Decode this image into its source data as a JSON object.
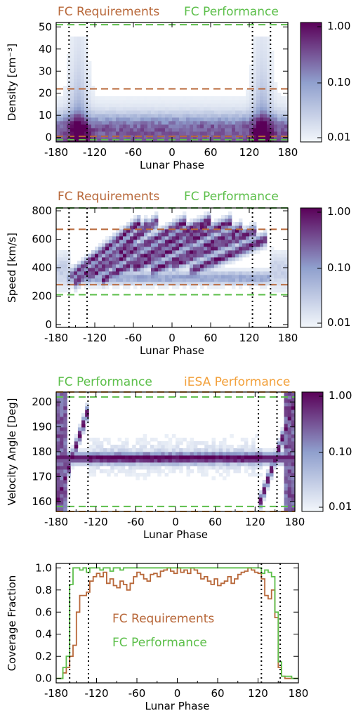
{
  "colors": {
    "fc_requirements": "#b8683a",
    "fc_performance": "#5cbf4a",
    "iesa_performance": "#f2a03a",
    "heat_low": "#f3f7fb",
    "heat_mid": "#8f9fcd",
    "heat_high": "#5a0058",
    "axis": "#000000"
  },
  "chart_data": [
    {
      "type": "heatmap",
      "ylabel": "Density [cm⁻³]",
      "xlabel": "Lunar Phase",
      "xlim": [
        -180,
        180
      ],
      "ylim": [
        -2,
        52
      ],
      "xticks": [
        -180,
        -120,
        -60,
        0,
        60,
        120,
        180
      ],
      "yticks": [
        0,
        10,
        20,
        30,
        40,
        50
      ],
      "legend": [
        {
          "label": "FC Requirements",
          "color": "#b8683a"
        },
        {
          "label": "FC Performance",
          "color": "#5cbf4a"
        }
      ],
      "hlines": [
        {
          "y": 22,
          "series": "FC Requirements"
        },
        {
          "y": 0.5,
          "series": "FC Requirements"
        },
        {
          "y": 51,
          "series": "FC Performance"
        },
        {
          "y": -1,
          "series": "FC Performance"
        }
      ],
      "vlines": [
        -160,
        -132,
        125,
        153
      ],
      "colorbar": {
        "scale": "log",
        "ticks": [
          "1.00",
          "0.10",
          "0.01"
        ]
      },
      "density_ridge": [
        {
          "x": -170,
          "y": 3
        },
        {
          "x": -150,
          "y": 8
        },
        {
          "x": -120,
          "y": 6
        },
        {
          "x": -60,
          "y": 4
        },
        {
          "x": 0,
          "y": 3
        },
        {
          "x": 60,
          "y": 4
        },
        {
          "x": 120,
          "y": 7
        },
        {
          "x": 150,
          "y": 8
        },
        {
          "x": 170,
          "y": 3
        }
      ]
    },
    {
      "type": "heatmap",
      "ylabel": "Speed [km/s]",
      "xlabel": "Lunar Phase",
      "xlim": [
        -180,
        180
      ],
      "ylim": [
        -20,
        820
      ],
      "xticks": [
        -180,
        -120,
        -60,
        0,
        60,
        120,
        180
      ],
      "yticks": [
        0,
        200,
        400,
        600,
        800
      ],
      "legend": [
        {
          "label": "FC Requirements",
          "color": "#b8683a"
        },
        {
          "label": "FC Performance",
          "color": "#5cbf4a"
        }
      ],
      "hlines": [
        {
          "y": 670,
          "series": "FC Requirements"
        },
        {
          "y": 280,
          "series": "FC Requirements"
        },
        {
          "y": 820,
          "series": "FC Performance"
        },
        {
          "y": 210,
          "series": "FC Performance"
        }
      ],
      "vlines": [
        -160,
        -132,
        125,
        153
      ],
      "colorbar": {
        "scale": "log",
        "ticks": [
          "1.00",
          "0.10",
          "0.01"
        ]
      },
      "streams": [
        {
          "x0": -160,
          "y0": 330,
          "x1": -50,
          "y1": 720
        },
        {
          "x0": -150,
          "y0": 300,
          "x1": -20,
          "y1": 740
        },
        {
          "x0": -130,
          "y0": 340,
          "x1": 20,
          "y1": 720
        },
        {
          "x0": -110,
          "y0": 310,
          "x1": 40,
          "y1": 700
        },
        {
          "x0": -90,
          "y0": 360,
          "x1": 60,
          "y1": 740
        },
        {
          "x0": -60,
          "y0": 400,
          "x1": 90,
          "y1": 720
        },
        {
          "x0": -30,
          "y0": 380,
          "x1": 110,
          "y1": 680
        },
        {
          "x0": 0,
          "y0": 420,
          "x1": 130,
          "y1": 660
        },
        {
          "x0": 30,
          "y0": 380,
          "x1": 145,
          "y1": 600
        },
        {
          "x0": -80,
          "y0": 500,
          "x1": -40,
          "y1": 700
        },
        {
          "x0": 20,
          "y0": 600,
          "x1": 60,
          "y1": 720
        }
      ]
    },
    {
      "type": "heatmap",
      "ylabel": "Velocity Angle [Deg]",
      "xlabel": "Lunar Phase",
      "xlim": [
        -180,
        180
      ],
      "ylim": [
        156,
        204
      ],
      "xticks": [
        -180,
        -120,
        -60,
        0,
        60,
        120,
        180
      ],
      "yticks": [
        160,
        170,
        180,
        190,
        200
      ],
      "legend": [
        {
          "label": "FC Performance",
          "color": "#5cbf4a"
        },
        {
          "label": "iESA Performance",
          "color": "#f2a03a"
        }
      ],
      "hlines": [
        {
          "y": 202,
          "series": "FC Performance"
        },
        {
          "y": 158,
          "series": "FC Performance"
        },
        {
          "y": 204,
          "series": "iESA Performance"
        },
        {
          "y": 156,
          "series": "iESA Performance"
        }
      ],
      "vlines": [
        -160,
        -132,
        125,
        153
      ],
      "colorbar": {
        "scale": "log",
        "ticks": [
          "1.00",
          "0.10",
          "0.01"
        ]
      },
      "band_center": 177.5
    },
    {
      "type": "line",
      "ylabel": "Coverage Fraction",
      "xlabel": "Lunar Phase",
      "xlim": [
        -180,
        180
      ],
      "ylim": [
        -0.04,
        1.04
      ],
      "xticks": [
        -180,
        -120,
        -60,
        0,
        60,
        120,
        180
      ],
      "yticks": [
        "0.0",
        "0.2",
        "0.4",
        "0.6",
        "0.8",
        "1.0"
      ],
      "vlines": [
        -160,
        -132,
        125,
        153
      ],
      "series": [
        {
          "name": "FC Requirements",
          "color": "#b8683a",
          "x": [
            -180,
            -175,
            -170,
            -165,
            -160,
            -155,
            -150,
            -145,
            -140,
            -135,
            -130,
            -125,
            -120,
            -115,
            -110,
            -105,
            -100,
            -95,
            -90,
            -85,
            -80,
            -75,
            -70,
            -65,
            -60,
            -55,
            -50,
            -45,
            -40,
            -35,
            -30,
            -25,
            -20,
            -15,
            -10,
            -5,
            0,
            5,
            10,
            15,
            20,
            25,
            30,
            35,
            40,
            45,
            50,
            55,
            60,
            65,
            70,
            75,
            80,
            85,
            90,
            95,
            100,
            105,
            110,
            115,
            120,
            125,
            130,
            135,
            140,
            145,
            150,
            155,
            160,
            165,
            170,
            175
          ],
          "values": [
            0.0,
            0.0,
            0.05,
            0.1,
            0.2,
            0.3,
            0.6,
            0.75,
            0.75,
            0.78,
            0.88,
            0.92,
            0.95,
            0.92,
            0.96,
            0.86,
            0.9,
            0.84,
            0.82,
            0.88,
            0.85,
            0.8,
            0.86,
            0.92,
            0.96,
            0.94,
            0.9,
            0.88,
            0.94,
            0.95,
            0.92,
            0.97,
            0.98,
            1.0,
            0.97,
            0.95,
            1.0,
            0.96,
            0.98,
            0.95,
            1.0,
            0.98,
            0.95,
            0.9,
            0.92,
            0.88,
            0.85,
            0.9,
            0.84,
            0.86,
            0.88,
            0.92,
            0.86,
            0.9,
            0.94,
            0.96,
            0.97,
            1.0,
            0.98,
            0.96,
            0.95,
            0.9,
            0.75,
            0.72,
            0.8,
            0.55,
            0.1,
            0.02,
            0.0,
            0.0,
            0.0,
            0.0
          ]
        },
        {
          "name": "FC Performance",
          "color": "#5cbf4a",
          "x": [
            -180,
            -175,
            -170,
            -165,
            -160,
            -155,
            -150,
            -145,
            -140,
            -135,
            -130,
            -125,
            -120,
            -115,
            -110,
            -105,
            -100,
            -95,
            -90,
            -85,
            -80,
            -75,
            -70,
            -65,
            -60,
            -55,
            -50,
            -45,
            -40,
            -35,
            -30,
            -25,
            -20,
            -15,
            -10,
            -5,
            0,
            5,
            10,
            15,
            20,
            25,
            30,
            35,
            40,
            45,
            50,
            55,
            60,
            65,
            70,
            75,
            80,
            85,
            90,
            95,
            100,
            105,
            110,
            115,
            120,
            125,
            130,
            135,
            140,
            145,
            150,
            155,
            160,
            165,
            170,
            175
          ],
          "values": [
            0.0,
            0.0,
            0.1,
            0.2,
            0.85,
            1.0,
            1.0,
            0.98,
            1.0,
            0.96,
            1.0,
            1.0,
            1.0,
            0.98,
            1.0,
            1.0,
            0.97,
            1.0,
            1.0,
            0.98,
            1.0,
            1.0,
            1.0,
            1.0,
            1.0,
            1.0,
            1.0,
            1.0,
            1.0,
            1.0,
            1.0,
            1.0,
            1.0,
            1.0,
            1.0,
            1.0,
            1.0,
            1.0,
            1.0,
            1.0,
            1.0,
            1.0,
            1.0,
            1.0,
            1.0,
            1.0,
            1.0,
            1.0,
            1.0,
            1.0,
            1.0,
            1.0,
            1.0,
            1.0,
            1.0,
            1.0,
            1.0,
            1.0,
            1.0,
            1.0,
            1.0,
            0.95,
            0.98,
            0.96,
            0.92,
            0.6,
            0.15,
            0.02,
            0.02,
            0.02,
            0.0,
            0.0
          ]
        }
      ]
    }
  ]
}
